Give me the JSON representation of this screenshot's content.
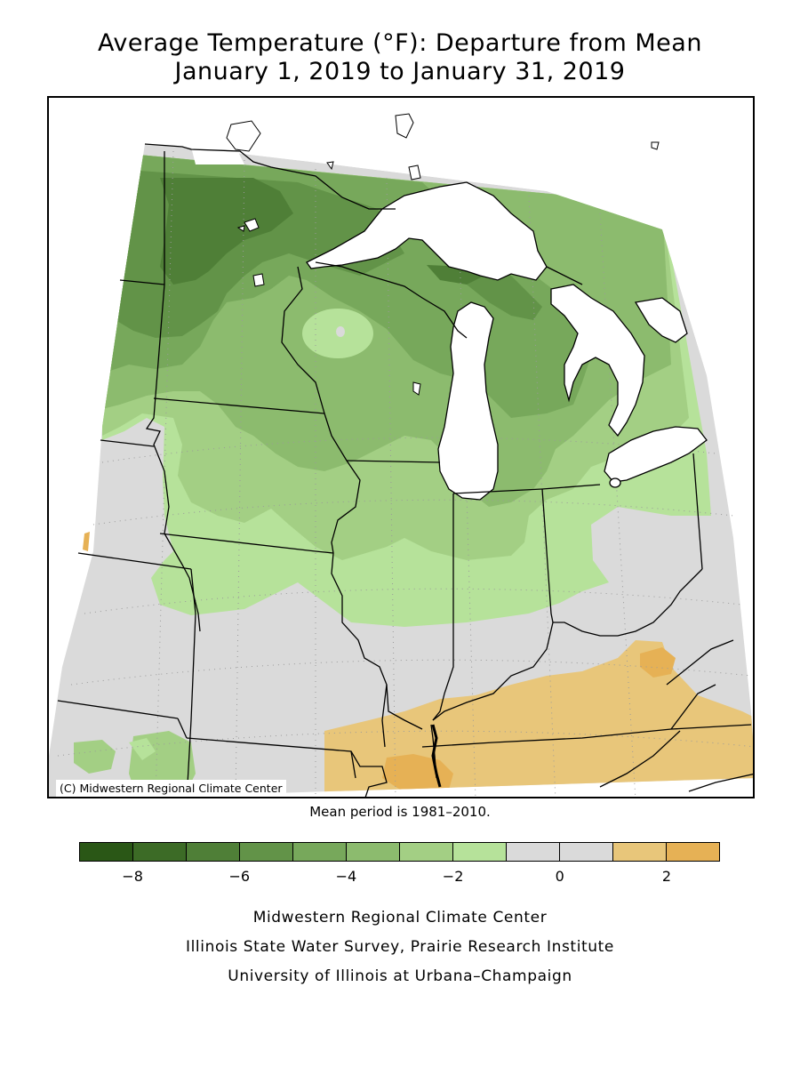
{
  "header": {
    "title_line1": "Average Temperature (°F): Departure from Mean",
    "title_line2": "January 1, 2019 to January 31, 2019"
  },
  "map": {
    "copyright": "(C) Midwestern Regional Climate Center",
    "mean_period": "Mean period is 1981–2010."
  },
  "legend": {
    "colors": [
      "#2a5716",
      "#3c6b26",
      "#4f7f37",
      "#629348",
      "#77a85b",
      "#8cbb6e",
      "#a3cf84",
      "#b6e29a",
      "#dadada",
      "#dadada",
      "#e8c67a",
      "#e6b155"
    ],
    "ticks": [
      {
        "label": "−8",
        "value": -8
      },
      {
        "label": "−6",
        "value": -6
      },
      {
        "label": "−4",
        "value": -4
      },
      {
        "label": "−2",
        "value": -2
      },
      {
        "label": "0",
        "value": 0
      },
      {
        "label": "2",
        "value": 2
      }
    ],
    "range": [
      -9,
      3
    ]
  },
  "footer": {
    "line1": "Midwestern Regional Climate Center",
    "line2": "Illinois State Water Survey, Prairie Research Institute",
    "line3": "University of Illinois at Urbana–Champaign"
  }
}
